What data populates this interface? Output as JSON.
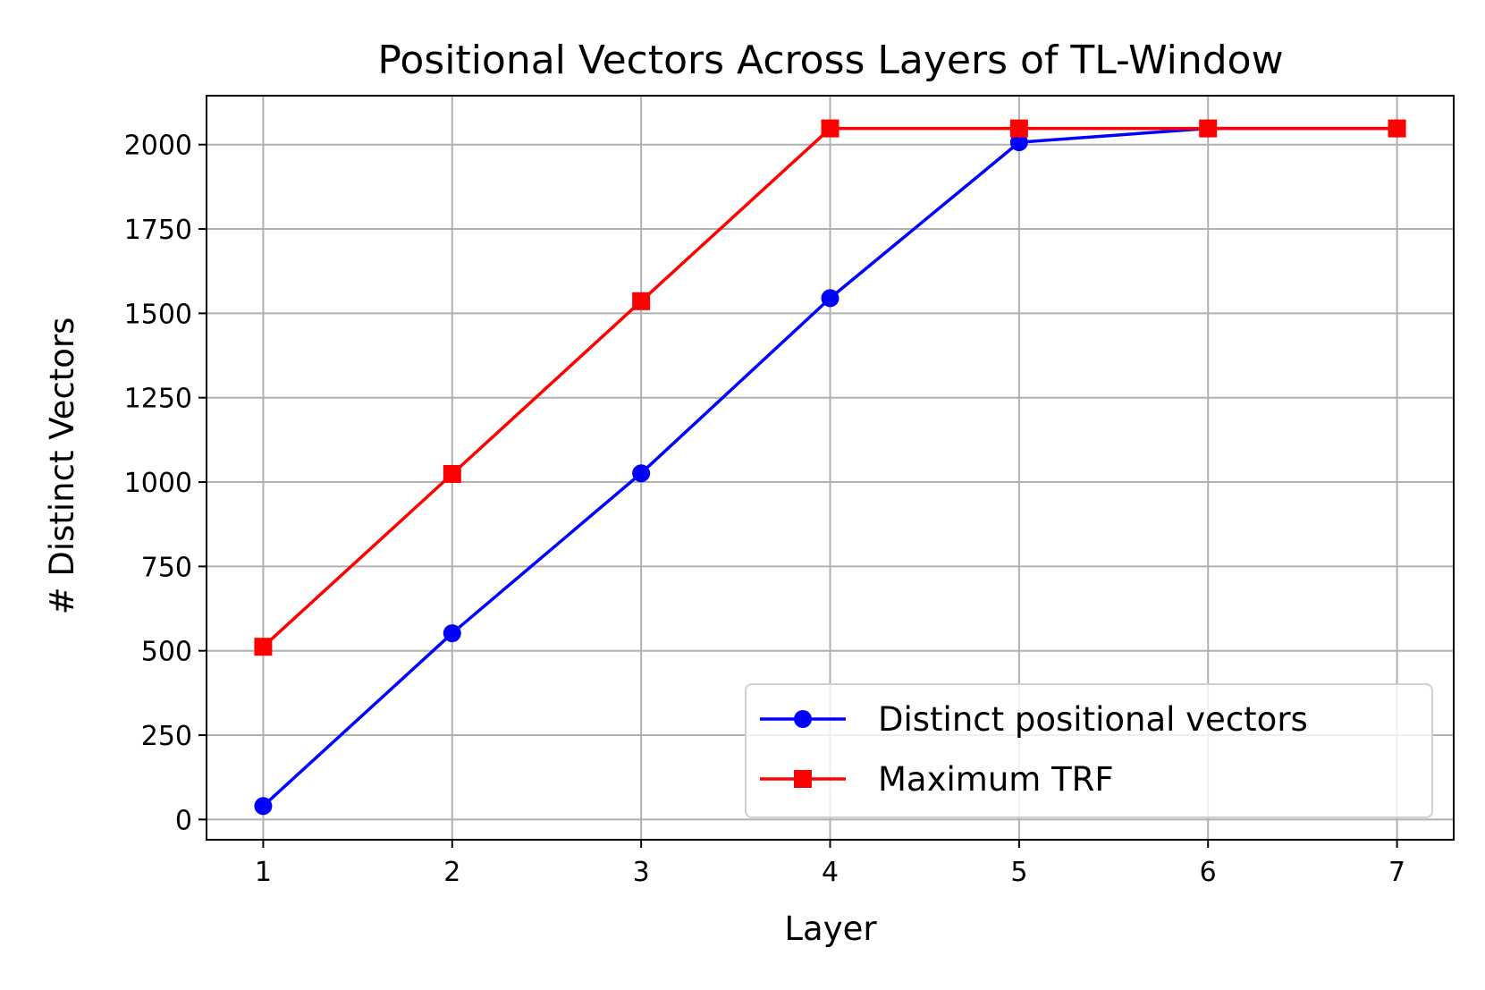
{
  "chart_data": {
    "type": "line",
    "title": "Positional Vectors Across Layers of TL-Window",
    "xlabel": "Layer",
    "ylabel": "# Distinct Vectors",
    "x": [
      1,
      2,
      3,
      4,
      5,
      6,
      7
    ],
    "xlim": [
      0.7,
      7.3
    ],
    "ylim": [
      -60,
      2145
    ],
    "xticks": [
      "1",
      "2",
      "3",
      "4",
      "5",
      "6",
      "7"
    ],
    "yticks": [
      "0",
      "250",
      "500",
      "750",
      "1000",
      "1250",
      "1500",
      "1750",
      "2000"
    ],
    "grid": true,
    "legend_position": "lower-right",
    "series": [
      {
        "name": "Distinct positional vectors",
        "color": "#0000ff",
        "marker": "circle",
        "values": [
          40,
          552,
          1026,
          1545,
          2007,
          2048,
          2048
        ]
      },
      {
        "name": "Maximum TRF",
        "color": "#ff0000",
        "marker": "square",
        "values": [
          512,
          1024,
          1536,
          2048,
          2048,
          2048,
          2048
        ]
      }
    ]
  }
}
